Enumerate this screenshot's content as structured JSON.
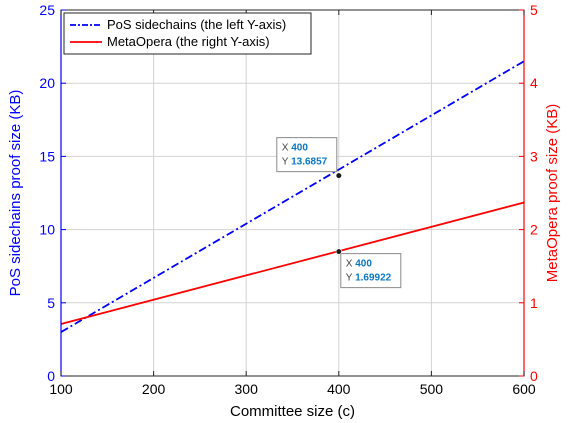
{
  "chart_data": {
    "type": "line",
    "xlabel": "Committee size (c)",
    "xlim": [
      100,
      600
    ],
    "xticks": [
      "100",
      "200",
      "300",
      "400",
      "500",
      "600"
    ],
    "grid": true,
    "legend_position": "top-left",
    "left_axis": {
      "label": "PoS sidechains proof size (KB)",
      "lim": [
        0,
        25
      ],
      "ticks": [
        "0",
        "5",
        "10",
        "15",
        "20",
        "25"
      ],
      "color": "#0000ff"
    },
    "right_axis": {
      "label": "MetaOpera proof size (KB)",
      "lim": [
        0,
        5
      ],
      "ticks": [
        "0",
        "1",
        "2",
        "3",
        "4",
        "5"
      ],
      "color": "#ff0000"
    },
    "series": [
      {
        "name": "PoS sidechains (the left Y-axis)",
        "axis": "left",
        "style": "dash-dot",
        "color": "#0000ff",
        "x": [
          100,
          600
        ],
        "y": [
          3.0,
          21.5
        ]
      },
      {
        "name": "MetaOpera (the right Y-axis)",
        "axis": "right",
        "style": "solid",
        "color": "#ff0000",
        "x": [
          100,
          600
        ],
        "y": [
          0.71,
          2.37
        ]
      }
    ],
    "datatips": [
      {
        "series": 0,
        "x": 400,
        "y": 13.6857,
        "x_label": "X",
        "y_label": "Y",
        "x_text": "400",
        "y_text": "13.6857"
      },
      {
        "series": 1,
        "x": 400,
        "y": 1.69922,
        "x_label": "X",
        "y_label": "Y",
        "x_text": "400",
        "y_text": "1.69922"
      }
    ]
  }
}
